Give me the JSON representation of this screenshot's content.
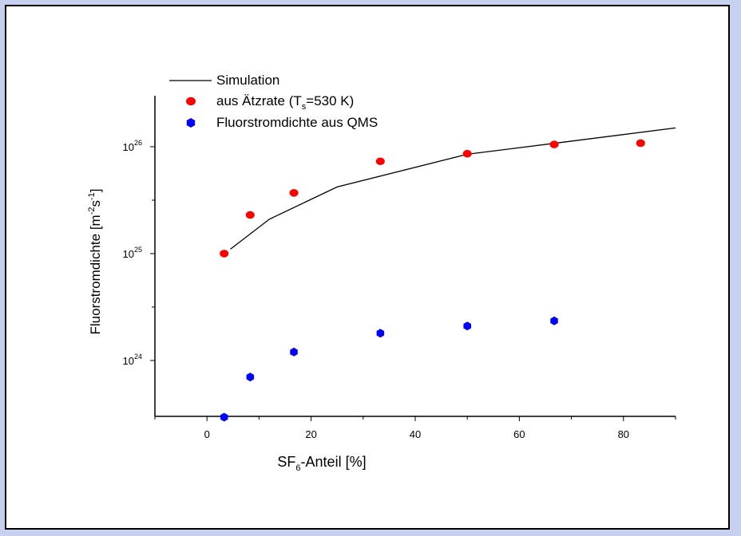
{
  "chart_data": {
    "type": "scatter",
    "xlabel": {
      "main": "SF",
      "sub": "6",
      "rest": "-Anteil [%]"
    },
    "ylabel": {
      "main": "Fluorstromdichte [m",
      "sup1": "-2",
      "mid": "s",
      "sup2": "-1",
      "end": "]"
    },
    "xlim": [
      -10,
      90
    ],
    "ylim": [
      3e+23,
      3e+26
    ],
    "yscale": "log",
    "x_ticks": [
      0,
      20,
      40,
      60,
      80
    ],
    "y_ticks": [
      {
        "value": 1e+24,
        "base": "10",
        "exp": "24"
      },
      {
        "value": 1e+25,
        "base": "10",
        "exp": "25"
      },
      {
        "value": 1e+26,
        "base": "10",
        "exp": "26"
      }
    ],
    "legend_position": "top-left",
    "series": [
      {
        "name": "Simulation",
        "kind": "line",
        "color": "#000000",
        "x": [
          4.5,
          12,
          25,
          50,
          67,
          90
        ],
        "y": [
          1.1e+25,
          2.1e+25,
          4.2e+25,
          8.5e+25,
          1.08e+26,
          1.5e+26
        ]
      },
      {
        "name": {
          "main": "aus Ätzrate (T",
          "sub": "s",
          "rest": "=530 K)"
        },
        "kind": "marker",
        "marker": "circle",
        "color": "#ff0000",
        "x": [
          3.3,
          8.3,
          16.7,
          33.3,
          50,
          66.7,
          83.3
        ],
        "y": [
          1e+25,
          2.3e+25,
          3.7e+25,
          7.3e+25,
          8.6e+25,
          1.05e+26,
          1.08e+26
        ]
      },
      {
        "name": "Fluorstromdichte aus QMS",
        "kind": "marker",
        "marker": "hexagon",
        "color": "#0000ff",
        "x": [
          3.3,
          8.3,
          16.7,
          33.3,
          50,
          66.7
        ],
        "y": [
          2.95e+23,
          7e+23,
          1.2e+24,
          1.8e+24,
          2.1e+24,
          2.35e+24
        ]
      }
    ]
  }
}
